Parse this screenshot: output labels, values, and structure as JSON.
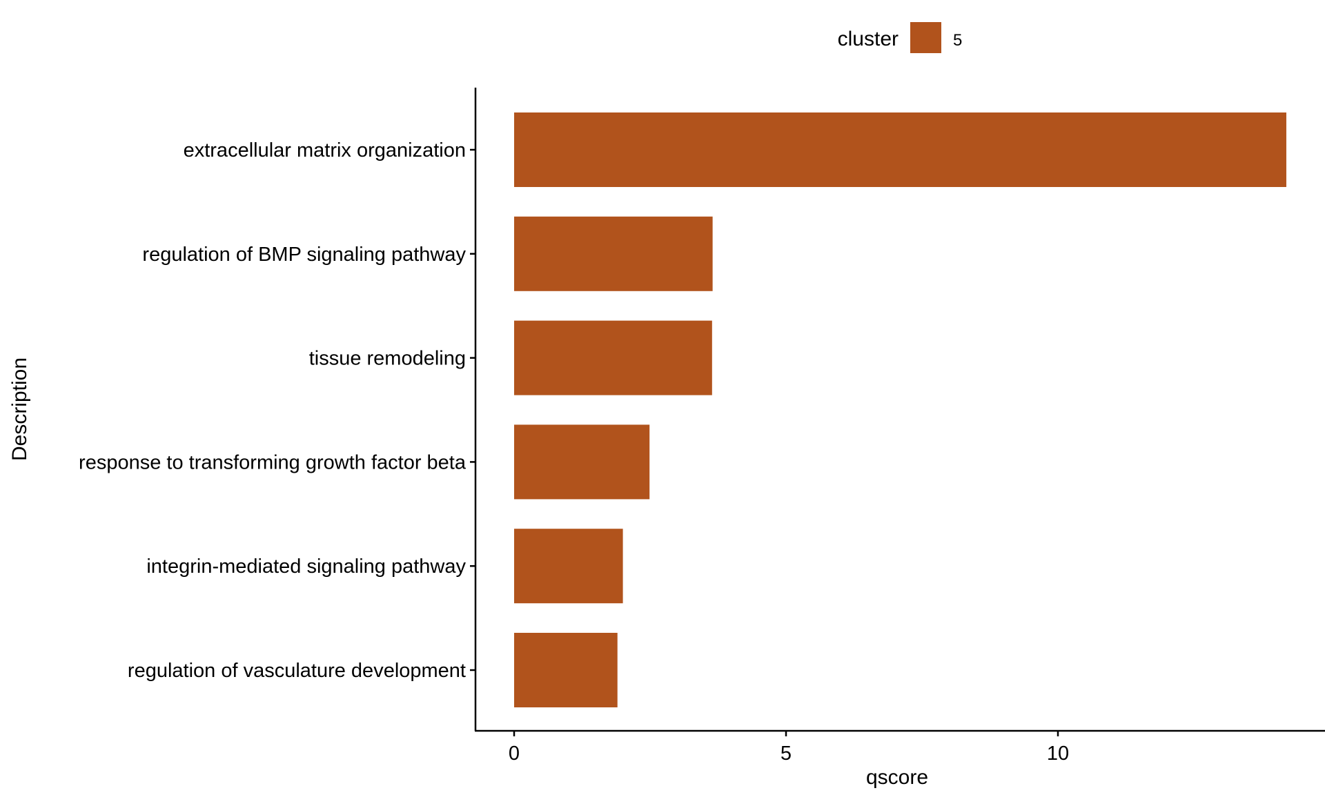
{
  "colors": {
    "bar": "#b1531c",
    "axis": "#000000",
    "background": "#ffffff"
  },
  "legend": {
    "title": "cluster",
    "position": "top",
    "entries": [
      {
        "label": "5",
        "color": "#b1531c"
      }
    ]
  },
  "chart_data": {
    "type": "bar",
    "orientation": "horizontal",
    "xlabel": "qscore",
    "ylabel": "Description",
    "xlim": [
      -0.7,
      15.05
    ],
    "x_ticks": [
      0,
      5,
      10
    ],
    "grid": false,
    "categories": [
      "extracellular matrix organization",
      "regulation of BMP signaling pathway",
      "tissue remodeling",
      "response to transforming growth factor beta",
      "integrin-mediated signaling pathway",
      "regulation of vasculature development"
    ],
    "series": [
      {
        "name": "5",
        "values": [
          14.2,
          3.65,
          3.64,
          2.49,
          2.0,
          1.9
        ]
      }
    ]
  }
}
